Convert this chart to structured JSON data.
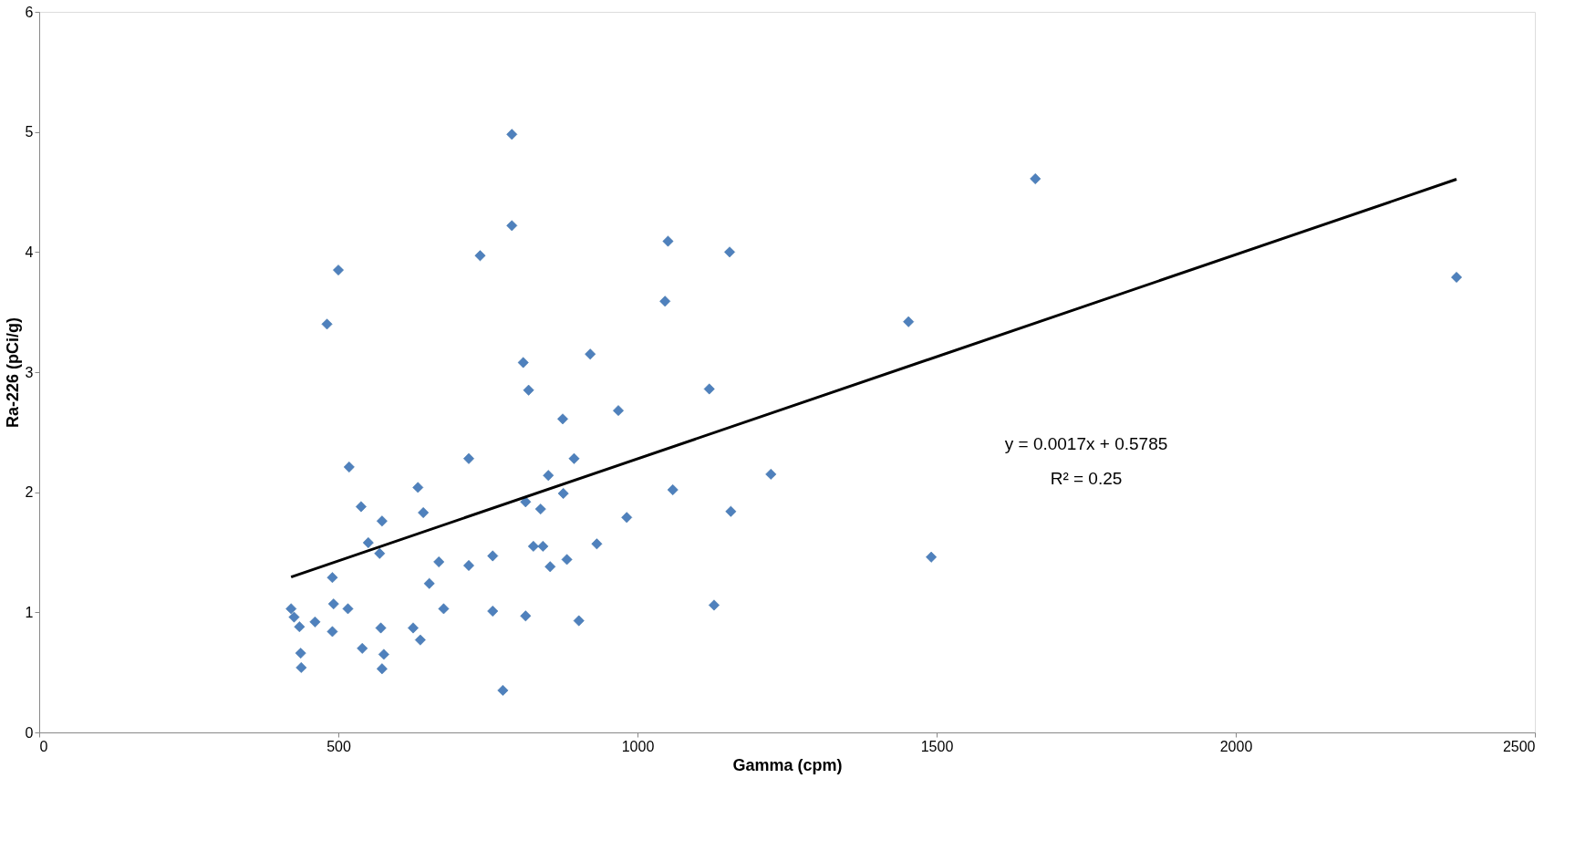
{
  "chart_data": {
    "type": "scatter",
    "xlabel": "Gamma (cpm)",
    "ylabel": "Ra-226 (pCi/g)",
    "xlim": [
      0,
      2500
    ],
    "xticks": [
      0,
      500,
      1000,
      1500,
      2000,
      2500
    ],
    "ylim": [
      0,
      6
    ],
    "yticks": [
      0,
      1,
      2,
      3,
      4,
      5,
      6
    ],
    "grid": false,
    "marker": "diamond",
    "annotations": [
      "y = 0.0017x + 0.5785",
      "R² = 0.25"
    ],
    "series": [
      {
        "type": "scatter",
        "color": "#4f81bd",
        "x": [
          421,
          426,
          435,
          437,
          438,
          461,
          481,
          490,
          490,
          492,
          500,
          516,
          518,
          538,
          540,
          550,
          569,
          571,
          573,
          573,
          576,
          625,
          633,
          637,
          642,
          652,
          668,
          676,
          718,
          718,
          737,
          758,
          758,
          775,
          790,
          790,
          809,
          813,
          813,
          818,
          826,
          838,
          842,
          851,
          854,
          875,
          876,
          882,
          894,
          902,
          921,
          932,
          968,
          982,
          1046,
          1051,
          1059,
          1120,
          1128,
          1154,
          1156,
          1223,
          1453,
          1491,
          1665,
          2369
        ],
        "values": [
          1.03,
          0.96,
          0.88,
          0.66,
          0.54,
          0.92,
          3.4,
          1.29,
          0.84,
          1.07,
          3.85,
          1.03,
          2.21,
          1.88,
          0.7,
          1.58,
          1.49,
          0.87,
          1.76,
          0.53,
          0.65,
          0.87,
          2.04,
          0.77,
          1.83,
          1.24,
          1.42,
          1.03,
          2.28,
          1.39,
          3.97,
          1.47,
          1.01,
          0.35,
          4.98,
          4.22,
          3.08,
          1.92,
          0.97,
          2.85,
          1.55,
          1.86,
          1.55,
          2.14,
          1.38,
          2.61,
          1.99,
          1.44,
          2.28,
          0.93,
          3.15,
          1.57,
          2.68,
          1.79,
          3.59,
          4.09,
          2.02,
          2.86,
          1.06,
          4.0,
          1.84,
          2.15,
          3.42,
          1.46,
          4.61,
          3.79
        ]
      },
      {
        "type": "line",
        "color": "#000000",
        "line_style": "solid",
        "marker": "none",
        "x": [
          421,
          2369
        ],
        "values": [
          1.294,
          4.606
        ]
      }
    ]
  }
}
